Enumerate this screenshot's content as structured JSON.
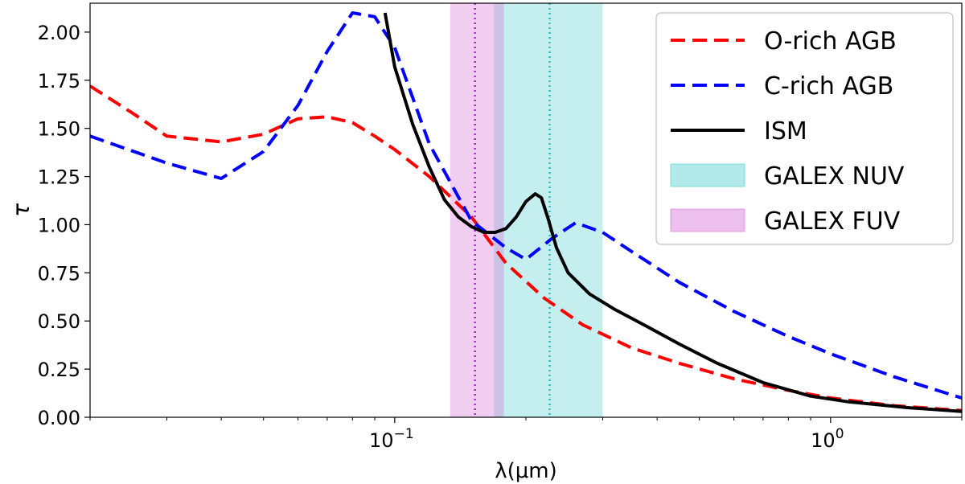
{
  "chart_data": {
    "type": "line",
    "xlabel": "λ(μm)",
    "ylabel": "τ",
    "xscale": "log",
    "xlim": [
      0.02,
      2.0
    ],
    "ylim": [
      0.0,
      2.15
    ],
    "xticks": [
      {
        "value": 0.1,
        "base": "10",
        "exp": "−1"
      },
      {
        "value": 1.0,
        "base": "10",
        "exp": "0"
      }
    ],
    "yticks": [
      "0.00",
      "0.25",
      "0.50",
      "0.75",
      "1.00",
      "1.25",
      "1.50",
      "1.75",
      "2.00"
    ],
    "grid": false,
    "legend_position": "top-right",
    "series": [
      {
        "name": "O-rich AGB",
        "color": "#ff0000",
        "style": "dashed",
        "x": [
          0.02,
          0.025,
          0.03,
          0.04,
          0.05,
          0.06,
          0.07,
          0.08,
          0.09,
          0.1,
          0.12,
          0.15,
          0.18,
          0.22,
          0.27,
          0.35,
          0.45,
          0.6,
          0.8,
          1.0,
          1.4,
          2.0
        ],
        "y": [
          1.72,
          1.58,
          1.46,
          1.43,
          1.47,
          1.55,
          1.56,
          1.53,
          1.46,
          1.39,
          1.25,
          1.04,
          0.8,
          0.62,
          0.48,
          0.36,
          0.28,
          0.2,
          0.14,
          0.1,
          0.06,
          0.035
        ]
      },
      {
        "name": "C-rich AGB",
        "color": "#0000ff",
        "style": "dashed",
        "x": [
          0.02,
          0.03,
          0.04,
          0.05,
          0.06,
          0.07,
          0.08,
          0.09,
          0.1,
          0.12,
          0.15,
          0.18,
          0.2,
          0.23,
          0.26,
          0.3,
          0.35,
          0.45,
          0.6,
          0.8,
          1.0,
          1.4,
          2.0
        ],
        "y": [
          1.46,
          1.32,
          1.24,
          1.38,
          1.62,
          1.9,
          2.1,
          2.08,
          1.92,
          1.42,
          1.02,
          0.88,
          0.82,
          0.93,
          1.01,
          0.96,
          0.86,
          0.7,
          0.55,
          0.42,
          0.33,
          0.21,
          0.1
        ]
      },
      {
        "name": "ISM",
        "color": "#000000",
        "style": "solid",
        "x": [
          0.095,
          0.1,
          0.11,
          0.12,
          0.13,
          0.14,
          0.15,
          0.16,
          0.17,
          0.18,
          0.19,
          0.2,
          0.21,
          0.217,
          0.225,
          0.235,
          0.25,
          0.28,
          0.32,
          0.38,
          0.45,
          0.55,
          0.7,
          0.9,
          1.1,
          1.5,
          2.0
        ],
        "y": [
          2.1,
          1.82,
          1.52,
          1.3,
          1.13,
          1.04,
          0.99,
          0.96,
          0.96,
          0.98,
          1.04,
          1.12,
          1.16,
          1.14,
          1.03,
          0.88,
          0.75,
          0.64,
          0.56,
          0.47,
          0.38,
          0.28,
          0.18,
          0.11,
          0.08,
          0.05,
          0.03
        ]
      }
    ],
    "bands": [
      {
        "name": "GALEX NUV",
        "color": "#40c8c8",
        "opacity": 0.3,
        "x_range": [
          0.169,
          0.3
        ],
        "center": 0.2267,
        "center_color": "#20c0c0"
      },
      {
        "name": "GALEX FUV",
        "color": "#d670d6",
        "opacity": 0.35,
        "x_range": [
          0.134,
          0.178
        ],
        "center": 0.1528,
        "center_color": "#b020d0"
      }
    ]
  }
}
